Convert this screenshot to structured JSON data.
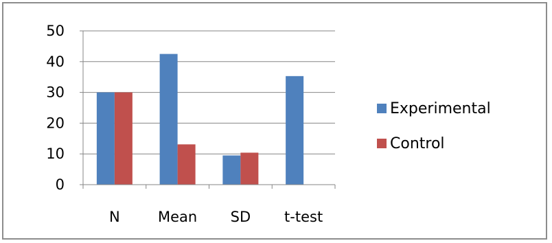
{
  "chart_data": {
    "type": "bar",
    "title": "",
    "xlabel": "",
    "ylabel": "",
    "categories": [
      "N",
      "Mean",
      "SD",
      "t-test"
    ],
    "series": [
      {
        "name": "Experimental",
        "color": "#4f81bd",
        "values": [
          30,
          42.5,
          9.5,
          35.3
        ]
      },
      {
        "name": "Control",
        "color": "#c0504d",
        "values": [
          30,
          13.1,
          10.4,
          null
        ]
      }
    ],
    "ylim": [
      0,
      50
    ],
    "yticks": [
      0,
      10,
      20,
      30,
      40,
      50
    ],
    "grid": true,
    "legend_position": "right"
  }
}
